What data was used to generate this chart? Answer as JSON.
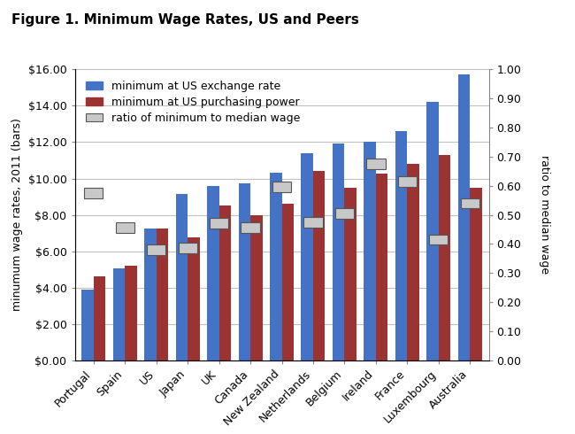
{
  "title": "Figure 1. Minimum Wage Rates, US and Peers",
  "ylabel_left": "minumum wage rates, 2011 (bars)",
  "ylabel_right": "ratio to median wage",
  "categories": [
    "Portugal",
    "Spain",
    "US",
    "Japan",
    "UK",
    "Canada",
    "New Zealand",
    "Netherlands",
    "Belgium",
    "Ireland",
    "France",
    "Luxembourg",
    "Australia"
  ],
  "exchange_rate": [
    3.9,
    5.05,
    7.25,
    9.15,
    9.6,
    9.75,
    10.3,
    11.4,
    11.95,
    12.0,
    12.6,
    14.2,
    15.75
  ],
  "purchasing_power": [
    4.6,
    5.2,
    7.25,
    6.75,
    8.5,
    8.0,
    8.6,
    10.4,
    9.5,
    10.25,
    10.8,
    11.3,
    9.5
  ],
  "ratio": [
    0.575,
    0.455,
    0.38,
    0.385,
    0.47,
    0.455,
    0.595,
    0.475,
    0.505,
    0.675,
    0.615,
    0.415,
    0.54
  ],
  "bar_color_blue": "#4472C4",
  "bar_color_red": "#9B3333",
  "ratio_box_face": "#C8C8C8",
  "ratio_box_edge": "#555555",
  "ylim_left": [
    0,
    16
  ],
  "ylim_right": [
    0,
    1.0
  ],
  "yticks_left": [
    0,
    2,
    4,
    6,
    8,
    10,
    12,
    14,
    16
  ],
  "yticks_right": [
    0.0,
    0.1,
    0.2,
    0.3,
    0.4,
    0.5,
    0.6,
    0.7,
    0.8,
    0.9,
    1.0
  ],
  "plot_bg": "#FFFFFF",
  "figure_bg": "#FFFFFF",
  "grid_color": "#C0C0C0",
  "title_fontsize": 11,
  "label_fontsize": 9,
  "tick_fontsize": 9,
  "legend_fontsize": 9
}
